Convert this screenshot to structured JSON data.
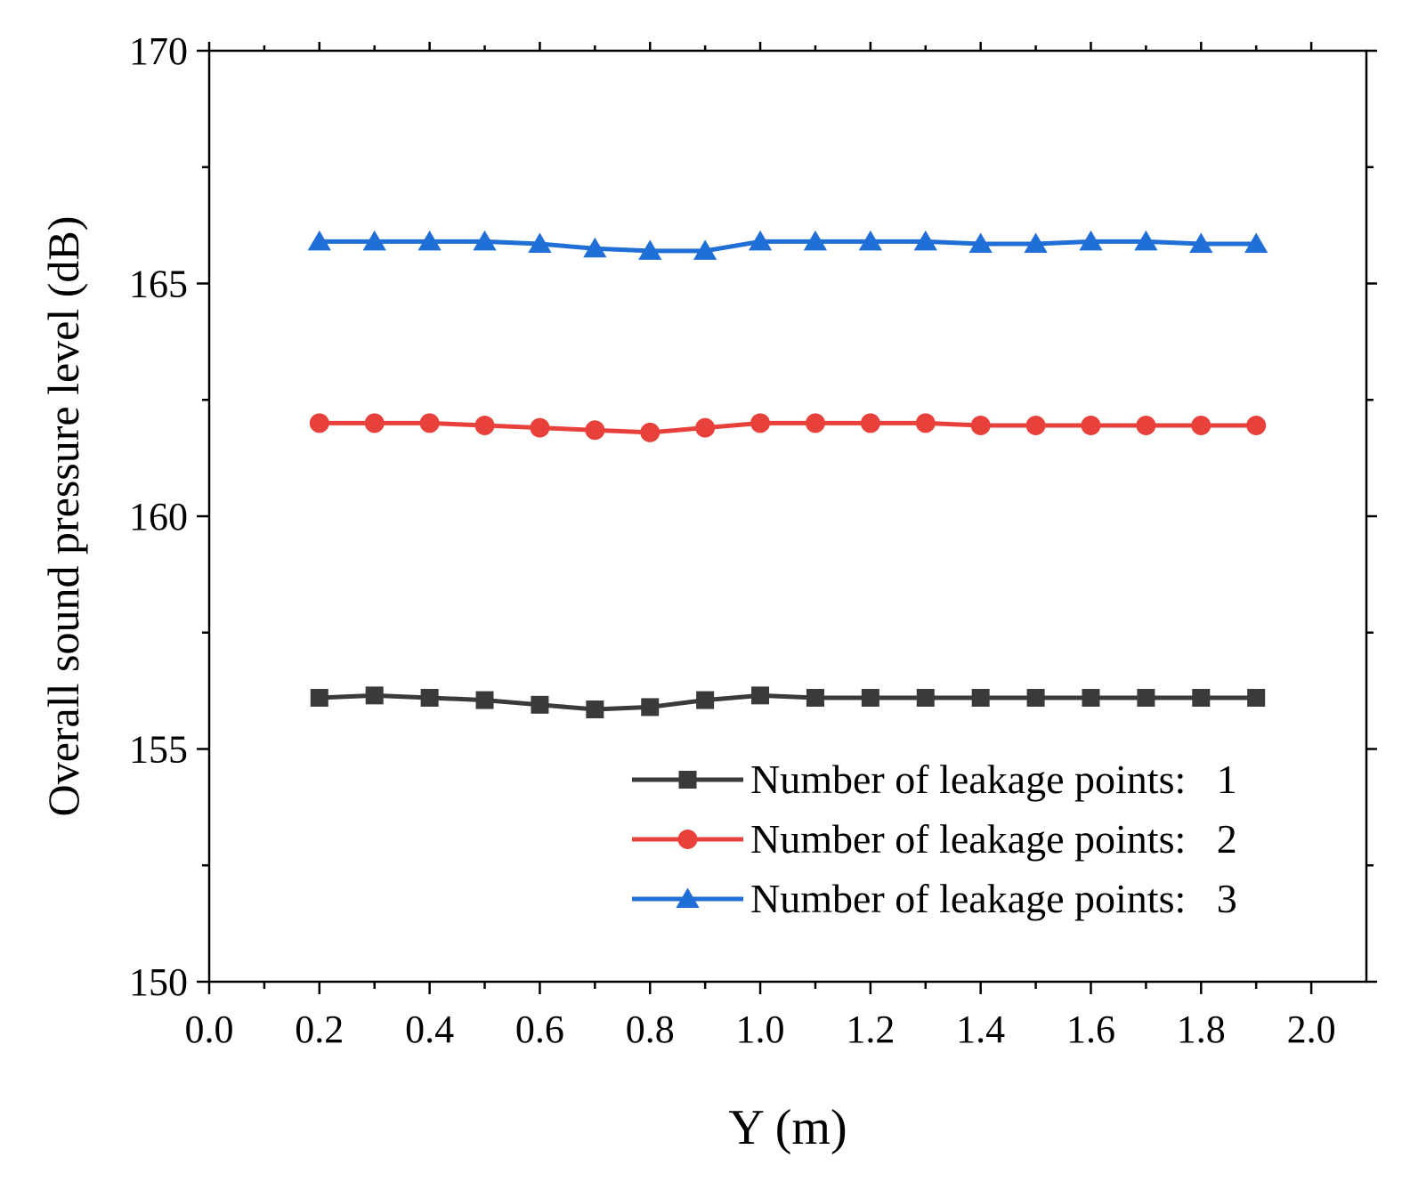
{
  "chart_data": {
    "type": "line",
    "title": "",
    "xlabel": "Y (m)",
    "ylabel": "Overall sound pressure level (dB)",
    "xlim": [
      0.0,
      2.1
    ],
    "ylim": [
      150,
      170
    ],
    "x_ticks": [
      0.0,
      0.2,
      0.4,
      0.6,
      0.8,
      1.0,
      1.2,
      1.4,
      1.6,
      1.8,
      2.0
    ],
    "x_tick_labels": [
      "0.0",
      "0.2",
      "0.4",
      "0.6",
      "0.8",
      "1.0",
      "1.2",
      "1.4",
      "1.6",
      "1.8",
      "2.0"
    ],
    "x_minor_ticks": [
      0.1,
      0.3,
      0.5,
      0.7,
      0.9,
      1.1,
      1.3,
      1.5,
      1.7,
      1.9
    ],
    "y_ticks": [
      150,
      155,
      160,
      165,
      170
    ],
    "y_tick_labels": [
      "150",
      "155",
      "160",
      "165",
      "170"
    ],
    "y_minor_ticks": [
      152.5,
      157.5,
      162.5,
      167.5
    ],
    "grid": false,
    "legend_position": "bottom-right",
    "x": [
      0.2,
      0.3,
      0.4,
      0.5,
      0.6,
      0.7,
      0.8,
      0.9,
      1.0,
      1.1,
      1.2,
      1.3,
      1.4,
      1.5,
      1.6,
      1.7,
      1.8,
      1.9
    ],
    "series": [
      {
        "name": "Number of leakage points:   1",
        "color": "#3a3a3a",
        "marker": "square",
        "values": [
          156.1,
          156.15,
          156.1,
          156.05,
          155.95,
          155.85,
          155.9,
          156.05,
          156.15,
          156.1,
          156.1,
          156.1,
          156.1,
          156.1,
          156.1,
          156.1,
          156.1,
          156.1
        ]
      },
      {
        "name": "Number of leakage points:   2",
        "color": "#e8403a",
        "marker": "circle",
        "values": [
          162.0,
          162.0,
          162.0,
          161.95,
          161.9,
          161.85,
          161.8,
          161.9,
          162.0,
          162.0,
          162.0,
          162.0,
          161.95,
          161.95,
          161.95,
          161.95,
          161.95,
          161.95
        ]
      },
      {
        "name": "Number of leakage points:   3",
        "color": "#1f6fd6",
        "marker": "triangle",
        "values": [
          165.9,
          165.9,
          165.9,
          165.9,
          165.85,
          165.75,
          165.7,
          165.7,
          165.9,
          165.9,
          165.9,
          165.9,
          165.85,
          165.85,
          165.9,
          165.9,
          165.85,
          165.85
        ]
      }
    ]
  }
}
